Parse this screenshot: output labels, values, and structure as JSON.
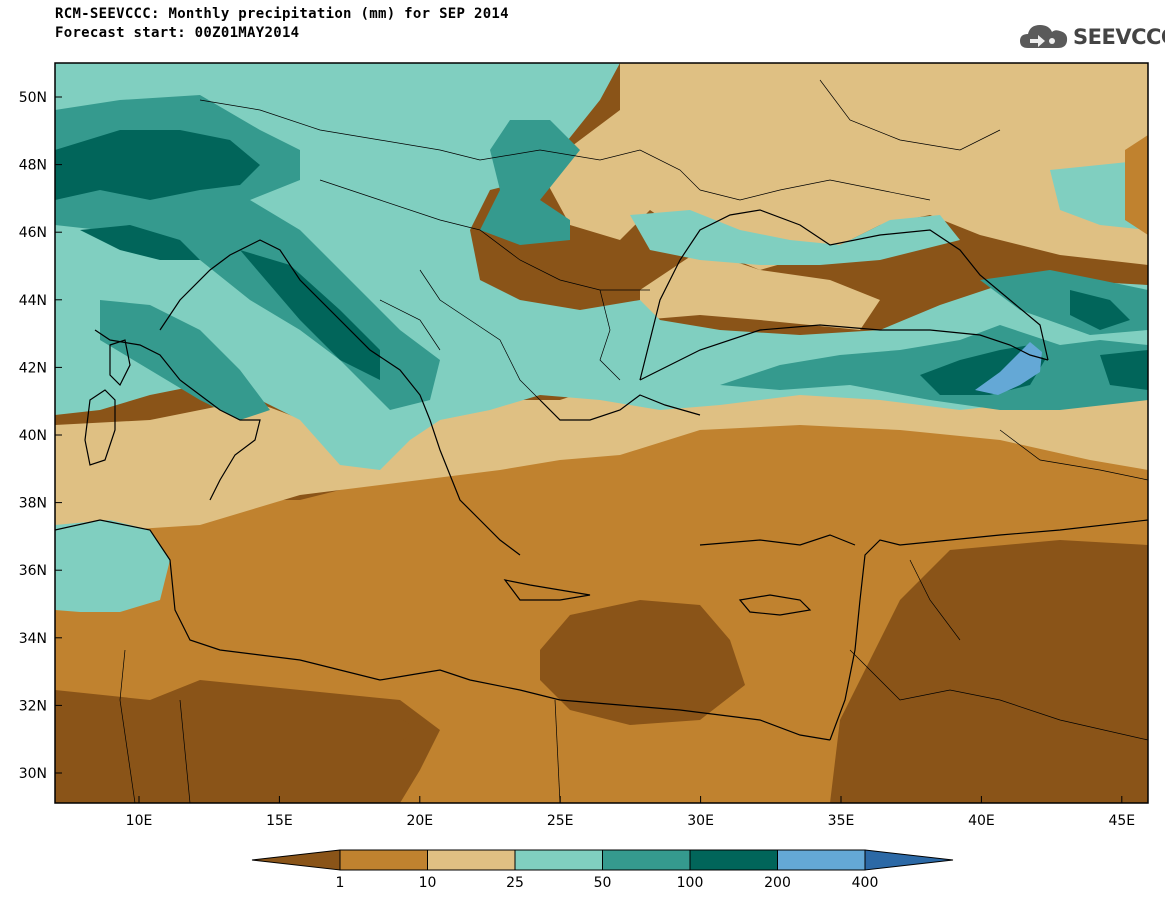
{
  "header": {
    "title": "RCM-SEEVCCC: Monthly precipitation (mm) for SEP 2014",
    "subtitle": "Forecast start: 00Z01MAY2014"
  },
  "logo": {
    "text": "SEEVCCC",
    "icon": "cloud-icon"
  },
  "map": {
    "lat_labels": [
      "50N",
      "48N",
      "46N",
      "44N",
      "42N",
      "40N",
      "38N",
      "36N",
      "34N",
      "32N",
      "30N"
    ],
    "lon_labels": [
      "10E",
      "15E",
      "20E",
      "25E",
      "30E",
      "35E",
      "40E",
      "45E"
    ]
  },
  "legend": {
    "unit": "mm",
    "colors": [
      "#8a5418",
      "#c0822f",
      "#dfc083",
      "#80cfc0",
      "#359a8e",
      "#01655a",
      "#64a8d6",
      "#2c69a6"
    ],
    "boundaries": [
      "1",
      "10",
      "25",
      "50",
      "100",
      "200",
      "400"
    ]
  }
}
